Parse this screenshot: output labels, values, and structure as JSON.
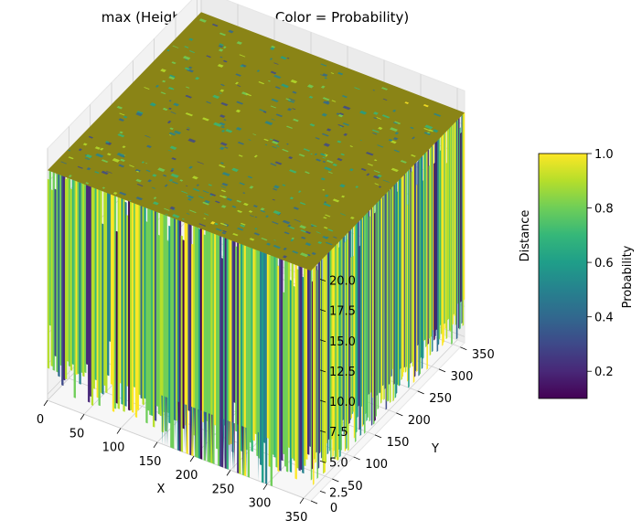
{
  "chart_data": {
    "type": "surface3d",
    "title": "max (Height = Distance, Color = Probability)",
    "xlabel": "X",
    "ylabel": "Y",
    "zlabel": "Distance",
    "xticks": [
      0,
      50,
      100,
      150,
      200,
      250,
      300,
      350
    ],
    "yticks": [
      0,
      50,
      100,
      150,
      200,
      250,
      300,
      350
    ],
    "zticks": [
      "2.5",
      "5.0",
      "7.5",
      "10.0",
      "12.5",
      "15.0",
      "17.5",
      "20.0"
    ],
    "xlim": [
      0,
      360
    ],
    "ylim": [
      0,
      360
    ],
    "zlim": [
      2,
      22
    ],
    "grid": true,
    "surface_summary": {
      "dominant_height": 21,
      "min_height": 2,
      "dominant_probability": 1.0,
      "note_height_range": [
        2,
        21
      ]
    },
    "colorbar": {
      "label": "Probability",
      "ticks": [
        "0.2",
        "0.4",
        "0.6",
        "0.8",
        "1.0"
      ],
      "range": [
        0.1,
        1.0
      ],
      "colormap": [
        "#440154",
        "#482878",
        "#3e4989",
        "#31688e",
        "#26828e",
        "#1f9e89",
        "#35b779",
        "#6ece58",
        "#b5de2b",
        "#fde725"
      ],
      "top_face_color": "#8a8416"
    }
  }
}
